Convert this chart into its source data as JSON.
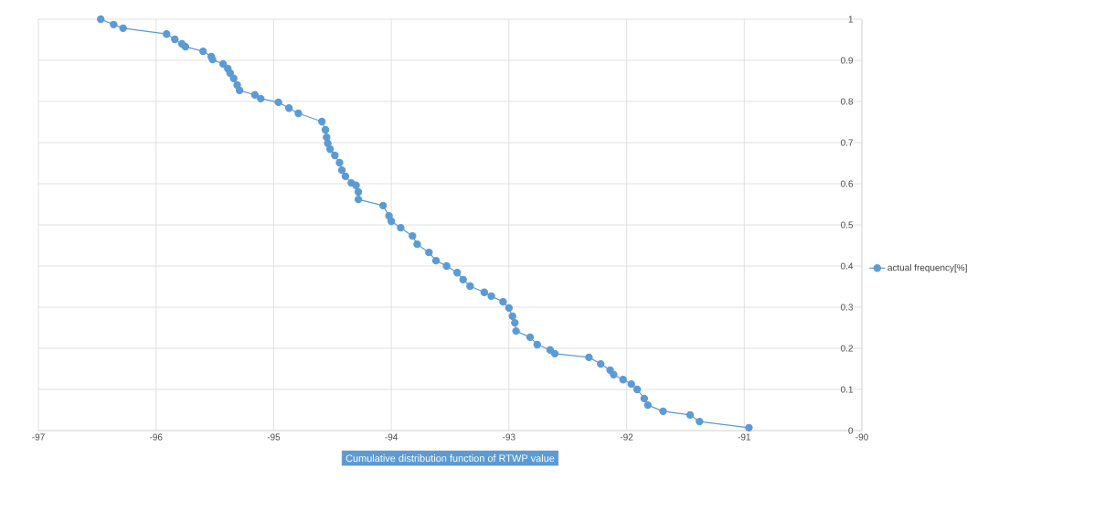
{
  "chart_data": {
    "type": "line",
    "xlabel": "Cumulative distribution function of RTWP value",
    "series": [
      {
        "name": "actual frequency[%]",
        "color": "#5b9bd5",
        "x": [
          -96.47,
          -96.36,
          -96.28,
          -95.91,
          -95.84,
          -95.78,
          -95.75,
          -95.6,
          -95.53,
          -95.52,
          -95.43,
          -95.39,
          -95.37,
          -95.34,
          -95.31,
          -95.29,
          -95.16,
          -95.11,
          -94.96,
          -94.87,
          -94.79,
          -94.59,
          -94.56,
          -94.55,
          -94.54,
          -94.52,
          -94.48,
          -94.44,
          -94.42,
          -94.39,
          -94.34,
          -94.3,
          -94.28,
          -94.28,
          -94.07,
          -94.02,
          -94.0,
          -93.92,
          -93.82,
          -93.78,
          -93.68,
          -93.62,
          -93.53,
          -93.44,
          -93.39,
          -93.33,
          -93.21,
          -93.15,
          -93.05,
          -93.0,
          -92.97,
          -92.95,
          -92.94,
          -92.82,
          -92.76,
          -92.65,
          -92.61,
          -92.32,
          -92.22,
          -92.14,
          -92.11,
          -92.03,
          -91.96,
          -91.91,
          -91.85,
          -91.82,
          -91.69,
          -91.46,
          -91.38,
          -90.96
        ],
        "values": [
          1.0,
          0.987,
          0.978,
          0.964,
          0.951,
          0.94,
          0.933,
          0.922,
          0.909,
          0.902,
          0.891,
          0.88,
          0.869,
          0.856,
          0.84,
          0.827,
          0.816,
          0.807,
          0.798,
          0.784,
          0.771,
          0.751,
          0.731,
          0.713,
          0.698,
          0.684,
          0.669,
          0.651,
          0.633,
          0.618,
          0.602,
          0.596,
          0.58,
          0.562,
          0.547,
          0.522,
          0.509,
          0.493,
          0.473,
          0.453,
          0.433,
          0.413,
          0.4,
          0.384,
          0.367,
          0.351,
          0.336,
          0.327,
          0.313,
          0.298,
          0.278,
          0.262,
          0.242,
          0.227,
          0.209,
          0.196,
          0.187,
          0.178,
          0.162,
          0.147,
          0.136,
          0.124,
          0.113,
          0.1,
          0.078,
          0.062,
          0.047,
          0.038,
          0.022,
          0.007
        ]
      }
    ],
    "xlim": [
      -97,
      -90
    ],
    "ylim": [
      0,
      1
    ],
    "xticks": [
      -97,
      -96,
      -95,
      -94,
      -93,
      -92,
      -91,
      -90
    ],
    "yticks": [
      0,
      0.1,
      0.2,
      0.3,
      0.4,
      0.5,
      0.6,
      0.7,
      0.8,
      0.9,
      1
    ],
    "grid": true,
    "legend": "right",
    "marker": "circle",
    "line_style": "solid"
  }
}
